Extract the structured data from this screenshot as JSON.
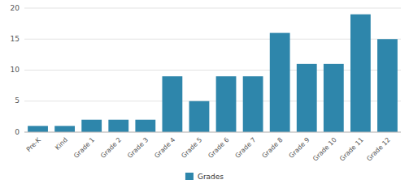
{
  "chart_data": {
    "type": "bar",
    "categories": [
      "Pre-K",
      "Kind",
      "Grade 1",
      "Grade 2",
      "Grade 3",
      "Grade 4",
      "Grade 5",
      "Grade 6",
      "Grade 7",
      "Grade 8",
      "Grade 9",
      "Grade 10",
      "Grade 11",
      "Grade 12"
    ],
    "series": [
      {
        "name": "Grades",
        "color": "#2e86ab",
        "values": [
          1,
          1,
          2,
          2,
          2,
          9,
          5,
          9,
          9,
          16,
          11,
          11,
          19,
          15
        ]
      }
    ],
    "ylim": [
      0,
      20
    ],
    "yticks": [
      0,
      5,
      10,
      15,
      20
    ],
    "grid": true,
    "legend": "bottom"
  }
}
